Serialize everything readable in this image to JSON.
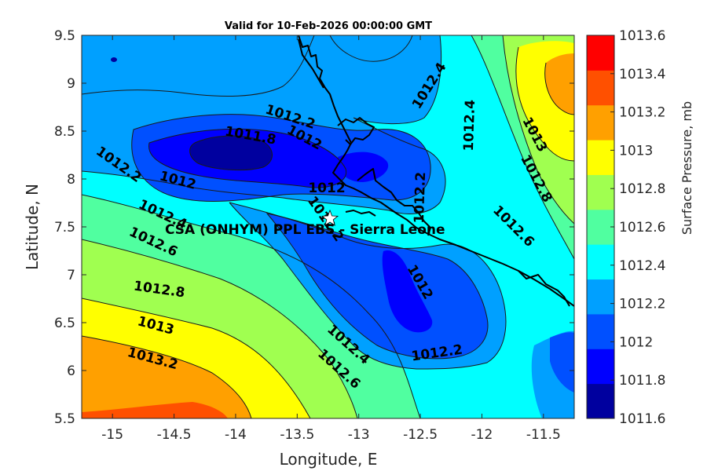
{
  "title": "Valid for 10-Feb-2026 00:00:00 GMT",
  "site_label": "CSA (ONHYM) PPL EBS  - Sierra Leone",
  "axes": {
    "xlabel": "Longitude, E",
    "ylabel": "Latitude, N",
    "xlim": [
      -15.25,
      -11.25
    ],
    "ylim": [
      5.5,
      9.5
    ],
    "xticks": [
      "-15",
      "-14.5",
      "-14",
      "-13.5",
      "-13",
      "-12.5",
      "-12",
      "-11.5"
    ],
    "yticks": [
      "5.5",
      "6",
      "6.5",
      "7",
      "7.5",
      "8",
      "8.5",
      "9",
      "9.5"
    ]
  },
  "colorbar": {
    "label": "Surface Pressure, mb",
    "ticks": [
      "1011.6",
      "1011.8",
      "1012",
      "1012.2",
      "1012.4",
      "1012.6",
      "1012.8",
      "1013",
      "1013.2",
      "1013.4",
      "1013.6"
    ],
    "colors": [
      "#00009f",
      "#0000ff",
      "#0050ff",
      "#00a0ff",
      "#00ffff",
      "#50ffa0",
      "#a0ff50",
      "#ffff00",
      "#ffa000",
      "#ff5000",
      "#ff0000"
    ]
  },
  "contour_labels": [
    "1011.8",
    "1012",
    "1012",
    "1012",
    "1012",
    "1012.2",
    "1012.2",
    "1012.2",
    "1012.2",
    "1012.2",
    "1012.4",
    "1012.4",
    "1012.4",
    "1012.4",
    "1012.6",
    "1012.6",
    "1012.6",
    "1012.8",
    "1012.8",
    "1013",
    "1013",
    "1013.2"
  ],
  "chart_data": {
    "type": "heatmap",
    "title": "Valid for 10-Feb-2026 00:00:00 GMT",
    "xlabel": "Longitude, E",
    "ylabel": "Latitude, N",
    "xlim": [
      -15.25,
      -11.25
    ],
    "ylim": [
      5.5,
      9.5
    ],
    "variable": "Surface Pressure, mb",
    "clim": [
      1011.6,
      1013.6
    ],
    "contour_levels": [
      1011.6,
      1011.8,
      1012,
      1012.2,
      1012.4,
      1012.6,
      1012.8,
      1013,
      1013.2,
      1013.4,
      1013.6
    ],
    "site": {
      "name": "CSA (ONHYM) PPL EBS  - Sierra Leone",
      "lon": -13.23,
      "lat": 7.62
    }
  }
}
